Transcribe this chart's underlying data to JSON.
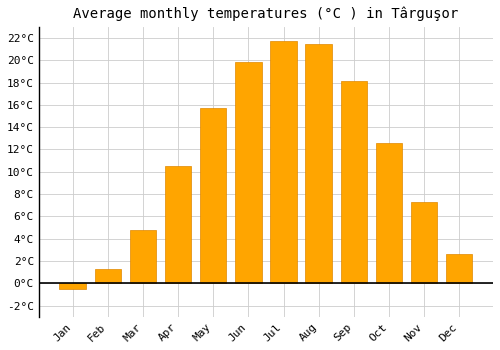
{
  "title": "Average monthly temperatures (°C ) in Târguşor",
  "months": [
    "Jan",
    "Feb",
    "Mar",
    "Apr",
    "May",
    "Jun",
    "Jul",
    "Aug",
    "Sep",
    "Oct",
    "Nov",
    "Dec"
  ],
  "values": [
    -0.5,
    1.3,
    4.8,
    10.5,
    15.7,
    19.8,
    21.7,
    21.5,
    18.1,
    12.6,
    7.3,
    2.6
  ],
  "bar_color": "#FFA500",
  "bar_edge_color": "#E08800",
  "ylim": [
    -3,
    23
  ],
  "yticks": [
    2,
    4,
    6,
    8,
    10,
    12,
    14,
    16,
    18,
    20,
    22
  ],
  "ytick_labels": [
    "2°C",
    "4°C",
    "6°C",
    "8°C",
    "10°C",
    "12°C",
    "14°C",
    "16°C",
    "18°C",
    "20°C",
    "22°C"
  ],
  "extra_yticks": [
    -2,
    0
  ],
  "extra_ytick_labels": [
    "-2°C",
    "0°C"
  ],
  "background_color": "#ffffff",
  "grid_color": "#cccccc",
  "font_family": "monospace",
  "title_fontsize": 10,
  "tick_fontsize": 8,
  "bar_width": 0.75
}
